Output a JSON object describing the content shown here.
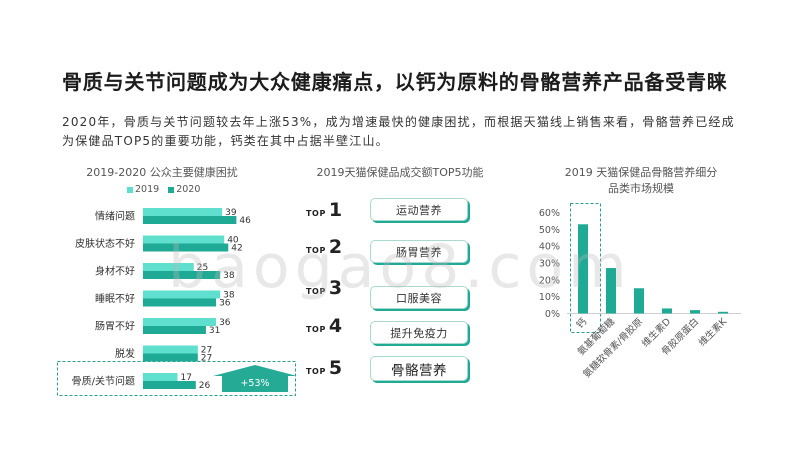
{
  "slide": {
    "title": "骨质与关节问题成为大众健康痛点，以钙为原料的骨骼营养产品备受青睐",
    "summary_lines": [
      "2020年，骨质与关节问题较去年上涨53%，成为增速最快的健康困扰，而根据天猫线上销售来看，骨骼营养已经成",
      "为保健品TOP5的重要功能，钙类在其中占据半壁江山。"
    ],
    "watermark": "baogao8.com"
  },
  "colors": {
    "accent": "#1faa95",
    "accent_light": "#5fdfcd",
    "text": "#333333"
  },
  "chart_data": [
    {
      "type": "bar",
      "orientation": "horizontal",
      "title": "2019-2020 公众主要健康困扰",
      "categories": [
        "情绪问题",
        "皮肤状态不好",
        "身材不好",
        "睡眠不好",
        "肠胃不好",
        "脱发",
        "骨质/关节问题"
      ],
      "series": [
        {
          "name": "2019",
          "color": "#5fdfcd",
          "values": [
            39,
            40,
            25,
            38,
            36,
            27,
            17
          ]
        },
        {
          "name": "2020",
          "color": "#1faa95",
          "values": [
            46,
            42,
            38,
            36,
            31,
            27,
            26
          ]
        }
      ],
      "legend": "top",
      "data_labels": true,
      "highlight_category": "骨质/关节问题",
      "annotation": {
        "text": "+53%",
        "category": "骨质/关节问题"
      }
    },
    {
      "type": "bar",
      "title_lines": [
        "2019 天猫保健品骨骼营养细分",
        "品类市场规模"
      ],
      "categories": [
        "钙",
        "氨基葡萄糖",
        "氨糖软骨素/骨胶原",
        "维生素D",
        "骨胶原蛋白",
        "维生素K"
      ],
      "values": [
        53,
        27,
        15,
        3,
        2,
        1
      ],
      "ylim": [
        0,
        60
      ],
      "yticks": [
        0,
        10,
        20,
        30,
        40,
        50,
        60
      ],
      "ytick_labels": [
        "0%",
        "10%",
        "20%",
        "30%",
        "40%",
        "50%",
        "60%"
      ],
      "grid": false,
      "color": "#1faa95",
      "highlight_category": "钙"
    }
  ],
  "top5": {
    "title": "2019天猫保健品成交额TOP5功能",
    "prefix": "TOP",
    "items": [
      {
        "rank": "1",
        "label": "运动营养"
      },
      {
        "rank": "2",
        "label": "肠胃营养"
      },
      {
        "rank": "3",
        "label": "口服美容"
      },
      {
        "rank": "4",
        "label": "提升免疫力"
      },
      {
        "rank": "5",
        "label": "骨骼营养",
        "highlight": true
      }
    ]
  }
}
